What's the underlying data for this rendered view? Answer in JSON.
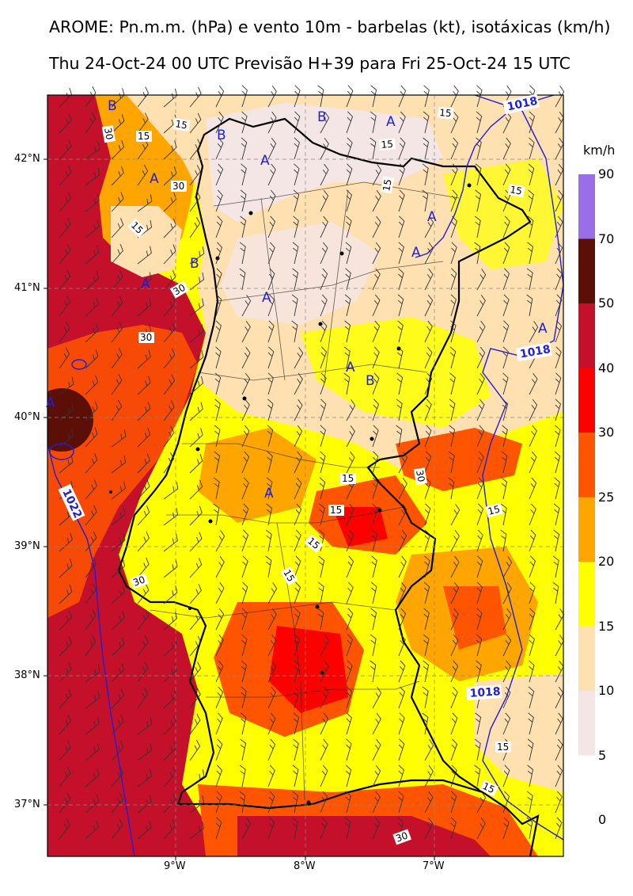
{
  "title_line1": "AROME: Pn.m.m. (hPa) e vento 10m - barbelas (kt), isotáxicas (km/h)",
  "title_line2": "Thu 24-Oct-24 00 UTC Previsão H+39 para Fri 25-Oct-24 15 UTC",
  "axes": {
    "lat_labels": [
      "42°N",
      "41°N",
      "40°N",
      "39°N",
      "38°N",
      "37°N"
    ],
    "lon_labels": [
      "9°W",
      "8°W",
      "7°W"
    ]
  },
  "colorbar": {
    "unit": "km/h",
    "levels": [
      "90",
      "70",
      "50",
      "40",
      "30",
      "25",
      "20",
      "15",
      "10",
      "5",
      "0"
    ],
    "colors": [
      "#9a6ee8",
      "#5c0f06",
      "#c4102b",
      "#ff0000",
      "#ff5500",
      "#ffa500",
      "#ffff00",
      "#ffe0b0",
      "#f5e6e6"
    ]
  },
  "isobars": [
    "1018",
    "1018",
    "1018",
    "1022"
  ],
  "isotach_labels": [
    "30",
    "15",
    "15",
    "30",
    "15",
    "30",
    "30",
    "15",
    "15",
    "15",
    "15",
    "15",
    "15",
    "30",
    "15",
    "15",
    "30",
    "15",
    "15",
    "15",
    "30"
  ],
  "pressure_markers": [
    "B",
    "A",
    "B",
    "A",
    "A",
    "B",
    "A",
    "A",
    "A",
    "A",
    "A",
    "B",
    "A",
    "B",
    "A",
    "A"
  ]
}
